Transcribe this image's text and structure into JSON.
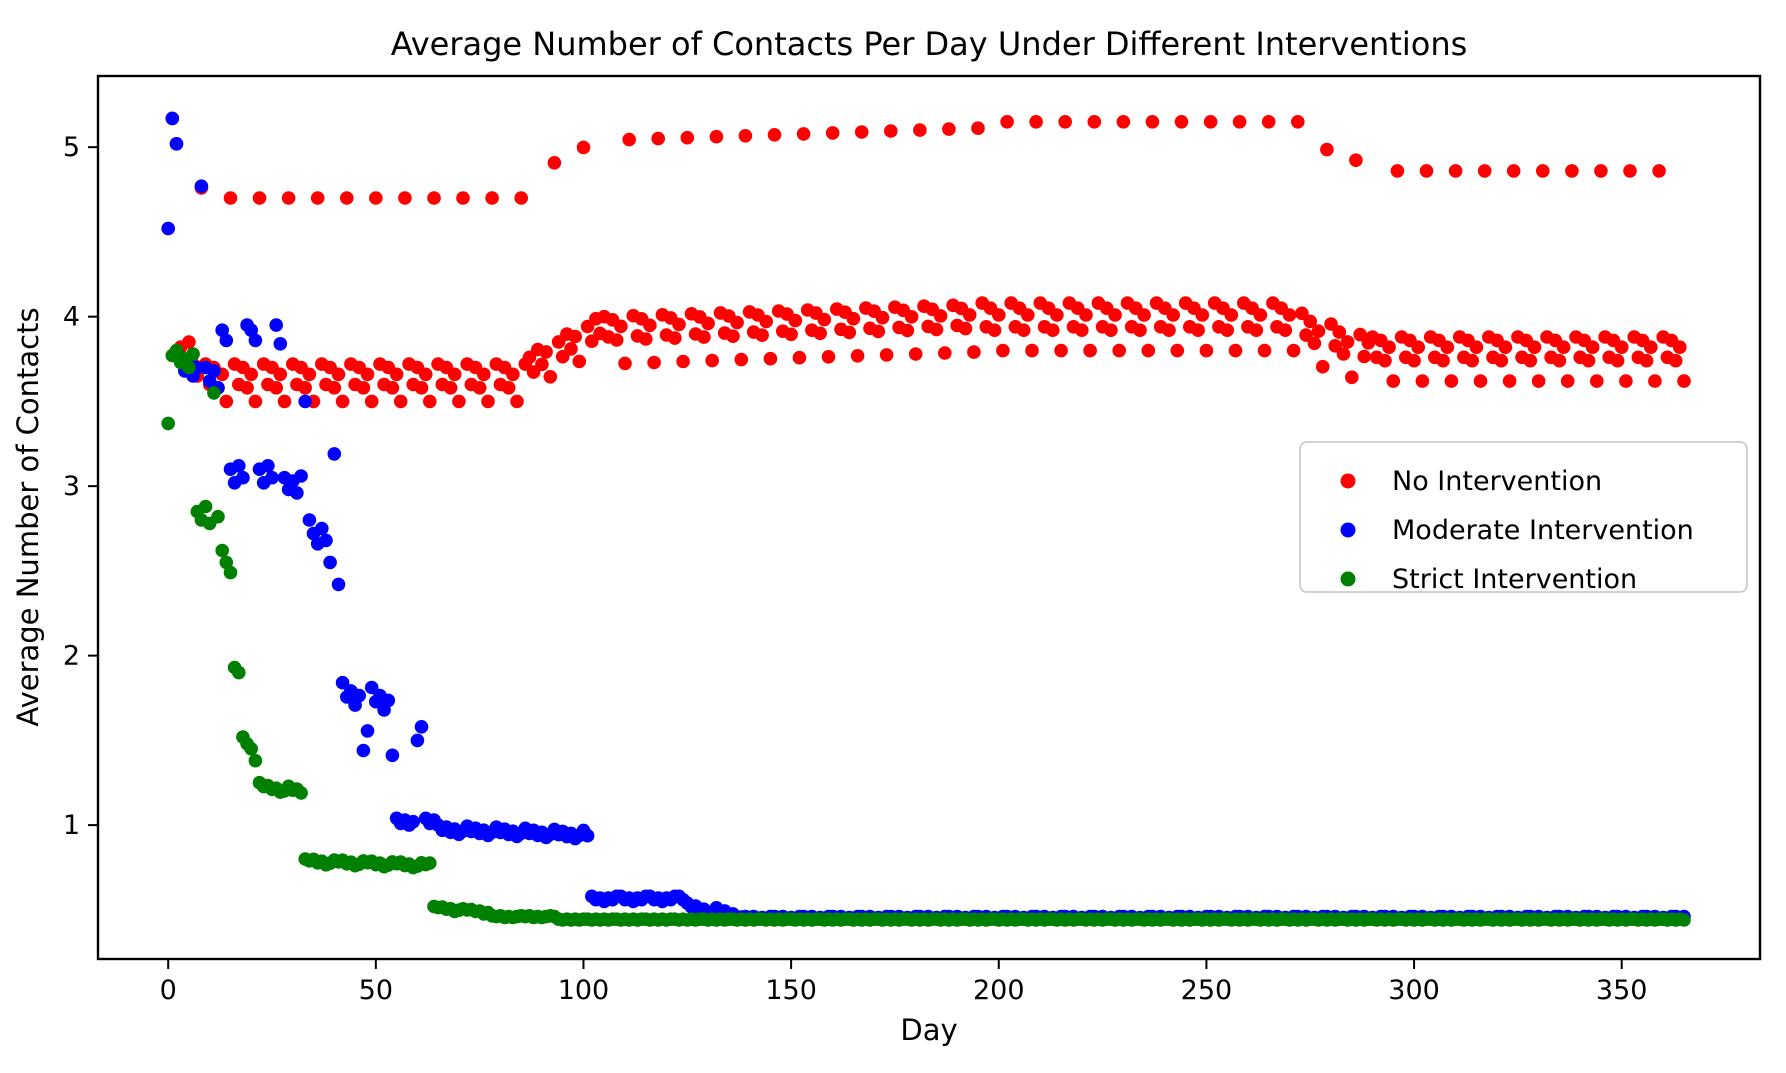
{
  "chart_data": {
    "type": "scatter",
    "title": "Average Number of Contacts Per Day Under Different Interventions",
    "xlabel": "Day",
    "ylabel": "Average Number of Contacts",
    "xlim": [
      -16.9,
      383.3
    ],
    "ylim": [
      0.21,
      5.42
    ],
    "xticks": [
      0,
      50,
      100,
      150,
      200,
      250,
      300,
      350
    ],
    "yticks": [
      1,
      2,
      3,
      4,
      5
    ],
    "grid": false,
    "background": "#ffffff",
    "legend": {
      "position": "center right",
      "border_color": "#cccccc",
      "entries": [
        {
          "label": "No Intervention",
          "color": "#ff0000"
        },
        {
          "label": "Moderate Intervention",
          "color": "#0000ff"
        },
        {
          "label": "Strict Intervention",
          "color": "#008000"
        }
      ]
    },
    "series": [
      {
        "name": "No Intervention",
        "color": "#ff0000",
        "marker": "circle",
        "explicit_points": [
          [
            0,
            4.52
          ],
          [
            1,
            5.17
          ],
          [
            2,
            5.02
          ],
          [
            3,
            3.82
          ],
          [
            4,
            3.74
          ],
          [
            5,
            3.85
          ],
          [
            6,
            3.72
          ],
          [
            7,
            3.65
          ],
          [
            8,
            4.76
          ]
        ],
        "segments": [
          {
            "from": 9,
            "to": 86,
            "pattern": [
              3.72,
              3.6,
              3.7,
              3.58,
              3.66,
              3.5,
              4.7
            ],
            "drift": 0
          },
          {
            "from": 87,
            "to": 104,
            "pattern": [
              3.76,
              3.66,
              3.78,
              3.68,
              3.74,
              3.58,
              4.83
            ],
            "drift": 0.013
          },
          {
            "from": 105,
            "to": 195,
            "pattern": [
              4.0,
              3.88,
              3.98,
              3.86,
              3.94,
              3.72,
              5.04
            ],
            "drift": 0.0008
          },
          {
            "from": 196,
            "to": 272,
            "pattern": [
              4.08,
              3.94,
              4.05,
              3.92,
              4.01,
              3.8,
              5.15
            ],
            "drift": 0
          },
          {
            "from": 273,
            "to": 289,
            "pattern": [
              4.02,
              3.9,
              3.99,
              3.87,
              3.95,
              3.75,
              5.04
            ],
            "drift": -0.009
          },
          {
            "from": 290,
            "to": 365,
            "pattern": [
              3.88,
              3.76,
              3.86,
              3.74,
              3.82,
              3.62,
              4.86
            ],
            "drift": 0
          }
        ]
      },
      {
        "name": "Moderate Intervention",
        "color": "#0000ff",
        "marker": "circle",
        "explicit_points": [
          [
            0,
            4.52
          ],
          [
            1,
            5.17
          ],
          [
            2,
            5.02
          ],
          [
            3,
            3.76
          ],
          [
            4,
            3.68
          ],
          [
            5,
            3.73
          ],
          [
            6,
            3.65
          ],
          [
            7,
            3.7
          ],
          [
            8,
            4.77
          ],
          [
            9,
            3.7
          ],
          [
            10,
            3.62
          ],
          [
            11,
            3.68
          ],
          [
            12,
            3.58
          ]
        ],
        "segments": [
          {
            "from": 13,
            "to": 26,
            "pattern": [
              3.92,
              3.86,
              3.1,
              3.02,
              3.12,
              3.05,
              3.95
            ],
            "drift": 0
          },
          {
            "from": 27,
            "to": 33,
            "pattern": [
              3.84,
              3.05,
              2.98,
              3.03,
              2.96,
              3.06,
              3.5
            ],
            "drift": 0
          },
          {
            "from": 34,
            "to": 41,
            "pattern": [
              2.8,
              2.72,
              2.66,
              2.75,
              2.68,
              2.55,
              3.19,
              2.42
            ],
            "drift": 0
          },
          {
            "from": 42,
            "to": 54,
            "pattern": [
              1.84,
              1.76,
              1.8,
              1.72,
              1.78,
              1.46,
              1.58
            ],
            "drift": -0.004
          },
          {
            "from": 55,
            "to": 64,
            "pattern": [
              1.04,
              1.01,
              1.03,
              1.0,
              1.02,
              1.5,
              1.58
            ],
            "drift": 0
          },
          {
            "from": 65,
            "to": 101,
            "pattern": [
              1.0,
              0.97,
              0.99,
              0.96,
              0.98,
              0.95,
              0.97
            ],
            "drift": -0.0009
          },
          {
            "from": 102,
            "to": 124,
            "pattern": [
              0.58,
              0.56,
              0.57,
              0.55,
              0.57,
              0.56,
              0.58
            ],
            "drift": 0
          },
          {
            "from": 125,
            "to": 138,
            "pattern": [
              0.54,
              0.52,
              0.53,
              0.51,
              0.52,
              0.5,
              0.51
            ],
            "drift": -0.004
          },
          {
            "from": 139,
            "to": 365,
            "pattern": [
              0.46,
              0.455,
              0.46,
              0.45,
              0.455,
              0.45,
              0.46
            ],
            "drift": 0
          }
        ]
      },
      {
        "name": "Strict Intervention",
        "color": "#008000",
        "marker": "circle",
        "explicit_points": [
          [
            0,
            3.37
          ],
          [
            1,
            3.77
          ],
          [
            2,
            3.8
          ],
          [
            3,
            3.73
          ],
          [
            4,
            3.75
          ],
          [
            5,
            3.7
          ],
          [
            6,
            3.78
          ],
          [
            7,
            2.85
          ],
          [
            8,
            2.8
          ],
          [
            9,
            2.88
          ],
          [
            10,
            2.78
          ],
          [
            11,
            3.55
          ],
          [
            12,
            2.82
          ],
          [
            13,
            2.62
          ],
          [
            14,
            2.55
          ],
          [
            15,
            2.49
          ],
          [
            16,
            1.93
          ],
          [
            17,
            1.9
          ],
          [
            18,
            1.52
          ],
          [
            19,
            1.48
          ],
          [
            20,
            1.45
          ],
          [
            21,
            1.38
          ]
        ],
        "segments": [
          {
            "from": 22,
            "to": 32,
            "pattern": [
              1.25,
              1.23,
              1.24,
              1.22,
              1.23,
              1.21,
              1.22
            ],
            "drift": -0.003
          },
          {
            "from": 33,
            "to": 63,
            "pattern": [
              0.8,
              0.79,
              0.8,
              0.78,
              0.79,
              0.77,
              0.78
            ],
            "drift": -0.0008
          },
          {
            "from": 64,
            "to": 77,
            "pattern": [
              0.52,
              0.515,
              0.52,
              0.51,
              0.515,
              0.5,
              0.51
            ],
            "drift": -0.002
          },
          {
            "from": 78,
            "to": 93,
            "pattern": [
              0.465,
              0.46,
              0.465,
              0.455,
              0.46,
              0.455,
              0.46
            ],
            "drift": 0
          },
          {
            "from": 94,
            "to": 365,
            "pattern": [
              0.445,
              0.44,
              0.445,
              0.44,
              0.445,
              0.44,
              0.445
            ],
            "drift": 0
          }
        ]
      }
    ]
  }
}
